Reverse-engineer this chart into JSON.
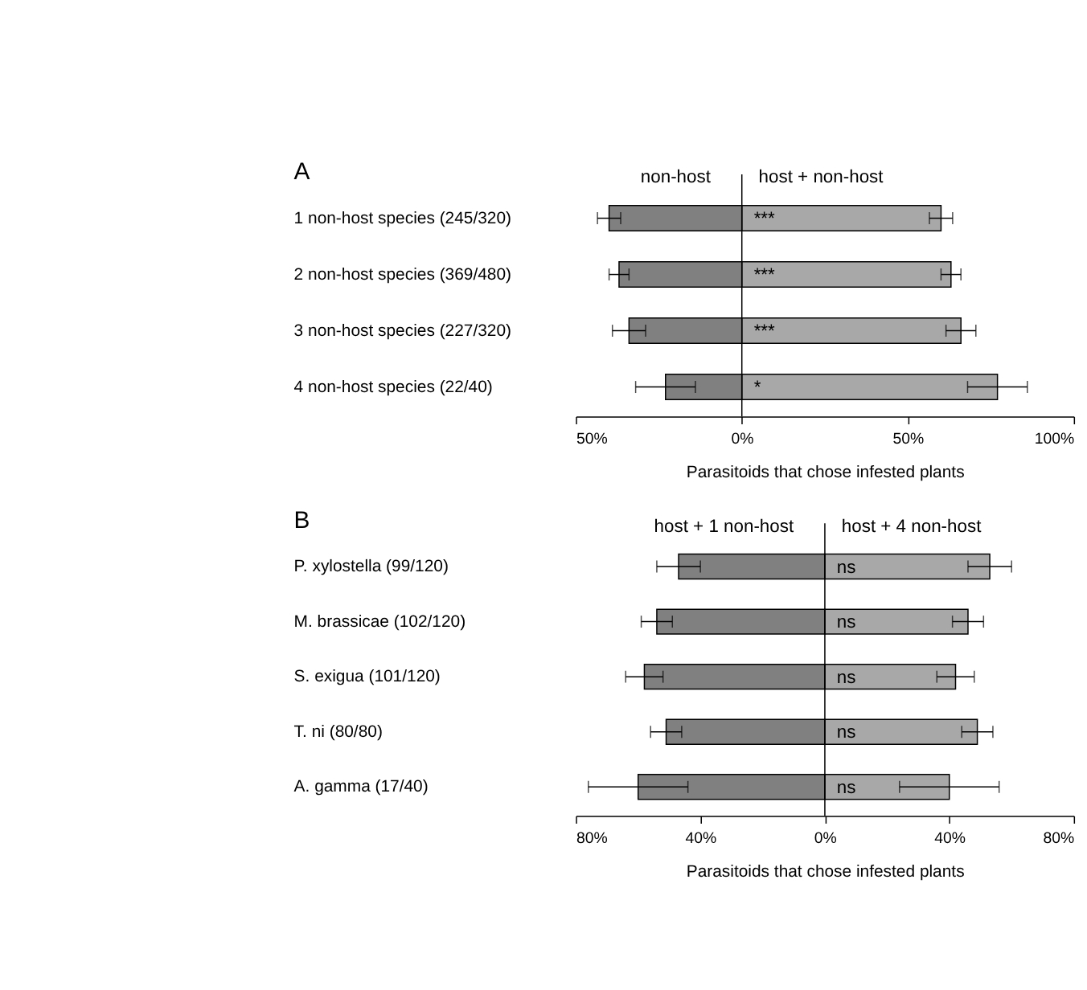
{
  "chart_data": [
    {
      "type": "bar",
      "orientation": "horizontal",
      "stacked": true,
      "title": "A",
      "xlabel": "Parasitoids that chose infested plants",
      "categories": [
        "1 non-host species  (245/320)",
        "2 non-host species  (369/480)",
        "3 non-host species  (227/320)",
        "4 non-host species  (22/40)"
      ],
      "series": [
        {
          "name": "non-host",
          "color": "#808080",
          "values": [
            -40,
            -37,
            -34,
            -23
          ],
          "errors": [
            3.5,
            3,
            5,
            9
          ]
        },
        {
          "name": "host + non-host",
          "color": "#a8a8a8",
          "values": [
            60,
            63,
            66,
            77
          ],
          "errors": [
            3.5,
            3,
            4.5,
            9
          ],
          "value_labels": [
            "***",
            "***",
            "***",
            "*"
          ]
        }
      ],
      "xlim": [
        -50,
        100
      ],
      "xticks": [
        {
          "value": -50,
          "label": "50%"
        },
        {
          "value": 0,
          "label": "0%"
        },
        {
          "value": 50,
          "label": "50%"
        },
        {
          "value": 100,
          "label": "100%"
        }
      ]
    },
    {
      "type": "bar",
      "orientation": "horizontal",
      "stacked": true,
      "title": "B",
      "xlabel": "Parasitoids that chose infested plants",
      "categories": [
        "P. xylostella   (99/120)",
        "M. brassicae  (102/120)",
        "S. exigua        (101/120)",
        "T. ni               (80/80)",
        "A. gamma       (17/40)"
      ],
      "series": [
        {
          "name": "host + 1 non-host",
          "color": "#808080",
          "values": [
            -47,
            -54,
            -58,
            -51,
            -60
          ],
          "errors": [
            7,
            5,
            6,
            5,
            16
          ]
        },
        {
          "name": "host + 4 non-host",
          "color": "#a8a8a8",
          "values": [
            53,
            46,
            42,
            49,
            40
          ],
          "errors": [
            7,
            5,
            6,
            5,
            16
          ],
          "value_labels": [
            "ns",
            "ns",
            "ns",
            "ns",
            "ns"
          ]
        }
      ],
      "xlim": [
        -80,
        80
      ],
      "xticks": [
        {
          "value": -80,
          "label": "80%"
        },
        {
          "value": -40,
          "label": "40%"
        },
        {
          "value": 0,
          "label": "0%"
        },
        {
          "value": 40,
          "label": "40%"
        },
        {
          "value": 80,
          "label": "80%"
        }
      ]
    }
  ]
}
